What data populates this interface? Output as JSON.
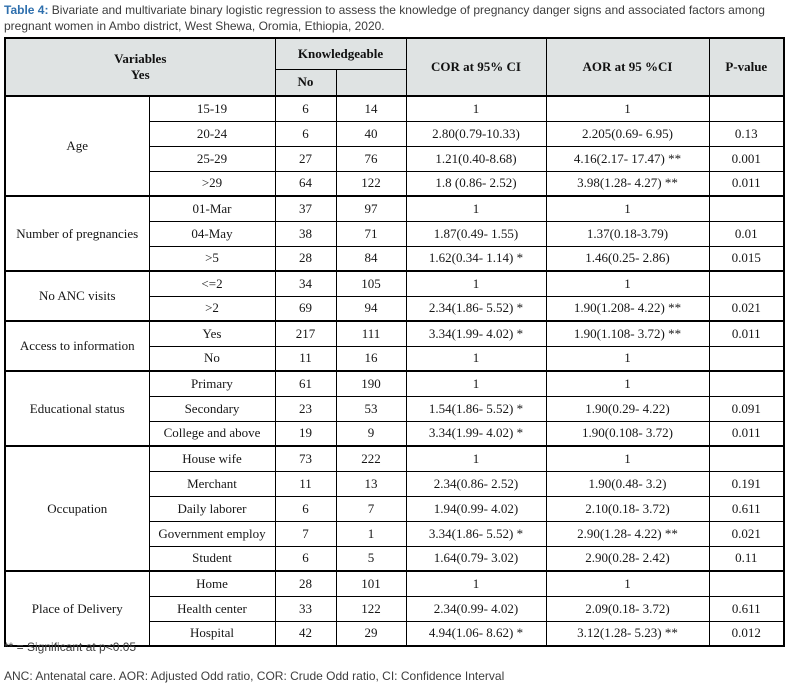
{
  "caption": {
    "label": "Table 4:",
    "text": " Bivariate and multivariate binary logistic regression to assess the knowledge of pregnancy danger signs and associated factors among pregnant women in Ambo district, West Shewa, Oromia, Ethiopia, 2020."
  },
  "colors": {
    "caption_accent": "#2e6fad",
    "header_background": "#dfe3e3",
    "border": "#000000",
    "body_text": "#161616",
    "note_text": "#3d3d3d"
  },
  "table": {
    "header": {
      "variables": "Variables",
      "variables_sub": "Yes",
      "knowledgeable": "Knowledgeable",
      "knowledgeable_sub_no": "No",
      "knowledgeable_sub_empty": "",
      "cor": "COR at 95% CI",
      "aor": "AOR at 95 %CI",
      "pvalue": "P-value"
    },
    "groups": [
      {
        "variable": "Age",
        "rows": [
          {
            "level": "15-19",
            "no": "6",
            "yes": "14",
            "cor": "1",
            "aor": "1",
            "p": ""
          },
          {
            "level": "20-24",
            "no": "6",
            "yes": "40",
            "cor": "2.80(0.79-10.33)",
            "aor": "2.205(0.69- 6.95)",
            "p": "0.13"
          },
          {
            "level": "25-29",
            "no": "27",
            "yes": "76",
            "cor": "1.21(0.40-8.68)",
            "aor": "4.16(2.17- 17.47) **",
            "p": "0.001"
          },
          {
            "level": ">29",
            "no": "64",
            "yes": "122",
            "cor": "1.8 (0.86- 2.52)",
            "aor": "3.98(1.28- 4.27) **",
            "p": "0.011"
          }
        ]
      },
      {
        "variable": "Number of pregnancies",
        "rows": [
          {
            "level": "01-Mar",
            "no": "37",
            "yes": "97",
            "cor": "1",
            "aor": "1",
            "p": ""
          },
          {
            "level": "04-May",
            "no": "38",
            "yes": "71",
            "cor": "1.87(0.49- 1.55)",
            "aor": "1.37(0.18-3.79)",
            "p": "0.01"
          },
          {
            "level": ">5",
            "no": "28",
            "yes": "84",
            "cor": "1.62(0.34- 1.14) *",
            "aor": "1.46(0.25- 2.86)",
            "p": "0.015"
          }
        ]
      },
      {
        "variable": "No ANC visits",
        "rows": [
          {
            "level": "<=2",
            "no": "34",
            "yes": "105",
            "cor": "1",
            "aor": "1",
            "p": ""
          },
          {
            "level": ">2",
            "no": "69",
            "yes": "94",
            "cor": "2.34(1.86- 5.52) *",
            "aor": "1.90(1.208- 4.22) **",
            "p": "0.021"
          }
        ]
      },
      {
        "variable": "Access to information",
        "rows": [
          {
            "level": "Yes",
            "no": "217",
            "yes": "111",
            "cor": "3.34(1.99- 4.02) *",
            "aor": "1.90(1.108- 3.72) **",
            "p": "0.011"
          },
          {
            "level": "No",
            "no": "11",
            "yes": "16",
            "cor": "1",
            "aor": "1",
            "p": ""
          }
        ]
      },
      {
        "variable": "Educational status",
        "rows": [
          {
            "level": "Primary",
            "no": "61",
            "yes": "190",
            "cor": "1",
            "aor": "1",
            "p": ""
          },
          {
            "level": "Secondary",
            "no": "23",
            "yes": "53",
            "cor": "1.54(1.86- 5.52) *",
            "aor": "1.90(0.29- 4.22)",
            "p": "0.091"
          },
          {
            "level": "College and above",
            "no": "19",
            "yes": "9",
            "cor": "3.34(1.99- 4.02) *",
            "aor": "1.90(0.108- 3.72)",
            "p": "0.011"
          }
        ]
      },
      {
        "variable": "Occupation",
        "rows": [
          {
            "level": "House wife",
            "no": "73",
            "yes": "222",
            "cor": "1",
            "aor": "1",
            "p": ""
          },
          {
            "level": "Merchant",
            "no": "11",
            "yes": "13",
            "cor": "2.34(0.86- 2.52)",
            "aor": "1.90(0.48- 3.2)",
            "p": "0.191"
          },
          {
            "level": "Daily laborer",
            "no": "6",
            "yes": "7",
            "cor": "1.94(0.99- 4.02)",
            "aor": "2.10(0.18- 3.72)",
            "p": "0.611"
          },
          {
            "level": "Government employ",
            "no": "7",
            "yes": "1",
            "cor": "3.34(1.86- 5.52) *",
            "aor": "2.90(1.28- 4.22) **",
            "p": "0.021"
          },
          {
            "level": "Student",
            "no": "6",
            "yes": "5",
            "cor": "1.64(0.79- 3.02)",
            "aor": "2.90(0.28- 2.42)",
            "p": "0.11"
          }
        ]
      },
      {
        "variable": "Place of Delivery",
        "rows": [
          {
            "level": "Home",
            "no": "28",
            "yes": "101",
            "cor": "1",
            "aor": "1",
            "p": ""
          },
          {
            "level": "Health center",
            "no": "33",
            "yes": "122",
            "cor": "2.34(0.99- 4.02)",
            "aor": "2.09(0.18- 3.72)",
            "p": "0.611"
          },
          {
            "level": "Hospital",
            "no": "42",
            "yes": "29",
            "cor": "4.94(1.06- 8.62) *",
            "aor": "3.12(1.28- 5.23) **",
            "p": "0.012"
          }
        ]
      }
    ]
  },
  "footnotes": {
    "significance": "** = Significant at p<0.05",
    "abbreviations": "ANC: Antenatal care. AOR: Adjusted Odd ratio, COR: Crude Odd ratio, CI: Confidence Interval"
  }
}
